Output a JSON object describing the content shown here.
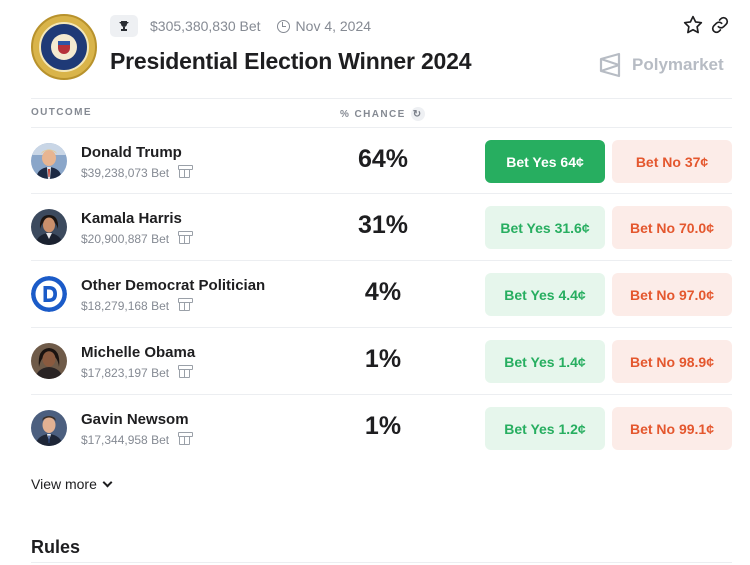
{
  "market": {
    "volume": "$305,380,830 Bet",
    "date": "Nov 4, 2024",
    "title": "Presidential Election Winner 2024",
    "brand": "Polymarket"
  },
  "table": {
    "col_outcome": "OUTCOME",
    "col_chance": "% CHANCE"
  },
  "outcomes": [
    {
      "name": "Donald Trump",
      "volume": "$39,238,073 Bet",
      "chance": "64%",
      "yes": "Bet Yes 64¢",
      "no": "Bet No 37¢"
    },
    {
      "name": "Kamala Harris",
      "volume": "$20,900,887 Bet",
      "chance": "31%",
      "yes": "Bet Yes 31.6¢",
      "no": "Bet No 70.0¢"
    },
    {
      "name": "Other Democrat Politician",
      "volume": "$18,279,168 Bet",
      "chance": "4%",
      "yes": "Bet Yes 4.4¢",
      "no": "Bet No 97.0¢"
    },
    {
      "name": "Michelle Obama",
      "volume": "$17,823,197 Bet",
      "chance": "1%",
      "yes": "Bet Yes 1.4¢",
      "no": "Bet No 98.9¢"
    },
    {
      "name": "Gavin Newsom",
      "volume": "$17,344,958 Bet",
      "chance": "1%",
      "yes": "Bet Yes 1.2¢",
      "no": "Bet No 99.1¢"
    }
  ],
  "footer": {
    "view_more": "View more",
    "rules": "Rules"
  },
  "icons": {
    "seal": "presidential-seal-icon",
    "trophy": "trophy-icon",
    "clock": "clock-icon",
    "star": "star-icon",
    "link": "link-icon",
    "refresh": "refresh-icon",
    "gift": "gift-icon",
    "chevron": "chevron-down-icon"
  },
  "colors": {
    "yes_green": "#27ae60",
    "yes_bg": "#e6f6ec",
    "no_red": "#e4572e",
    "no_bg": "#fcece8"
  }
}
